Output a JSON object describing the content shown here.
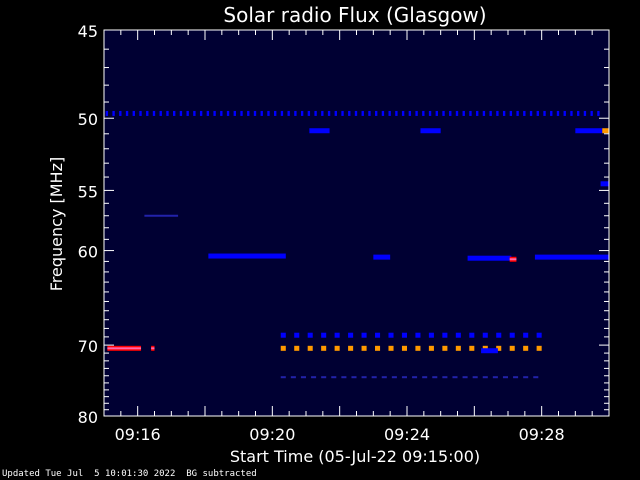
{
  "chart_data": {
    "type": "heatmap",
    "title": "Solar radio Flux (Glasgow)",
    "xlabel": "Start Time (05-Jul-22 09:15:00)",
    "ylabel": "Frequency [MHz]",
    "x_unit": "minutes after 09:15:00",
    "xlim": [
      0,
      15
    ],
    "ylim": [
      80,
      45
    ],
    "y_scale": "reciprocal (1/f)",
    "x_ticks": [
      {
        "x": 1,
        "label": "09:16"
      },
      {
        "x": 5,
        "label": "09:20"
      },
      {
        "x": 9,
        "label": "09:24"
      },
      {
        "x": 13,
        "label": "09:28"
      }
    ],
    "y_ticks": [
      {
        "y": 45,
        "label": "45"
      },
      {
        "y": 50,
        "label": "50"
      },
      {
        "y": 55,
        "label": "55"
      },
      {
        "y": 60,
        "label": "60"
      },
      {
        "y": 70,
        "label": "70"
      },
      {
        "y": 80,
        "label": "80"
      }
    ],
    "background_color": "#000033",
    "frame_color": "#ffffff",
    "colors": {
      "low": "#0000ff",
      "mid": "#ff0000",
      "high": "#ff9900"
    },
    "features": [
      {
        "kind": "dashed",
        "freq": 49.7,
        "x_start": 0.05,
        "x_end": 14.8,
        "dash_min": 0.2,
        "width_min": 0.07,
        "level": "low"
      },
      {
        "kind": "segment",
        "freq": 70.4,
        "x_start": 0.1,
        "x_end": 1.1,
        "level": "mid"
      },
      {
        "kind": "segment",
        "freq": 70.4,
        "x_start": 1.4,
        "x_end": 1.5,
        "level": "mid"
      },
      {
        "kind": "dashed",
        "freq": 68.8,
        "x_start": 5.25,
        "x_end": 12.9,
        "dash_min": 0.4,
        "width_min": 0.15,
        "level": "low"
      },
      {
        "kind": "dashed",
        "freq": 70.4,
        "x_start": 5.25,
        "x_end": 12.9,
        "dash_min": 0.4,
        "width_min": 0.15,
        "level": "high"
      },
      {
        "kind": "dashed",
        "freq": 74.2,
        "x_start": 5.25,
        "x_end": 12.9,
        "dash_min": 0.3,
        "width_min": 0.15,
        "level": "faint"
      },
      {
        "kind": "segment",
        "freq": 60.5,
        "x_start": 3.1,
        "x_end": 5.4,
        "level": "low"
      },
      {
        "kind": "segment",
        "freq": 60.7,
        "x_start": 10.8,
        "x_end": 12.1,
        "level": "low"
      },
      {
        "kind": "segment",
        "freq": 60.6,
        "x_start": 12.8,
        "x_end": 15.0,
        "level": "low"
      },
      {
        "kind": "segment",
        "freq": 60.6,
        "x_start": 8.0,
        "x_end": 8.5,
        "level": "low"
      },
      {
        "kind": "segment",
        "freq": 60.8,
        "x_start": 12.05,
        "x_end": 12.25,
        "level": "mid"
      },
      {
        "kind": "segment",
        "freq": 50.8,
        "x_start": 6.1,
        "x_end": 6.7,
        "level": "low"
      },
      {
        "kind": "segment",
        "freq": 50.8,
        "x_start": 9.4,
        "x_end": 10.0,
        "level": "low"
      },
      {
        "kind": "segment",
        "freq": 50.8,
        "x_start": 14.0,
        "x_end": 14.8,
        "level": "low"
      },
      {
        "kind": "segment",
        "freq": 50.8,
        "x_start": 14.8,
        "x_end": 15.0,
        "level": "high"
      },
      {
        "kind": "segment",
        "freq": 54.5,
        "x_start": 14.75,
        "x_end": 15.0,
        "level": "low"
      },
      {
        "kind": "segment",
        "freq": 57.0,
        "x_start": 1.2,
        "x_end": 2.2,
        "level": "faint"
      },
      {
        "kind": "segment",
        "freq": 70.7,
        "x_start": 11.2,
        "x_end": 11.7,
        "level": "low"
      }
    ]
  },
  "footer": {
    "updated": "Updated Tue Jul  5 10:01:30 2022",
    "note": "BG subtracted"
  }
}
